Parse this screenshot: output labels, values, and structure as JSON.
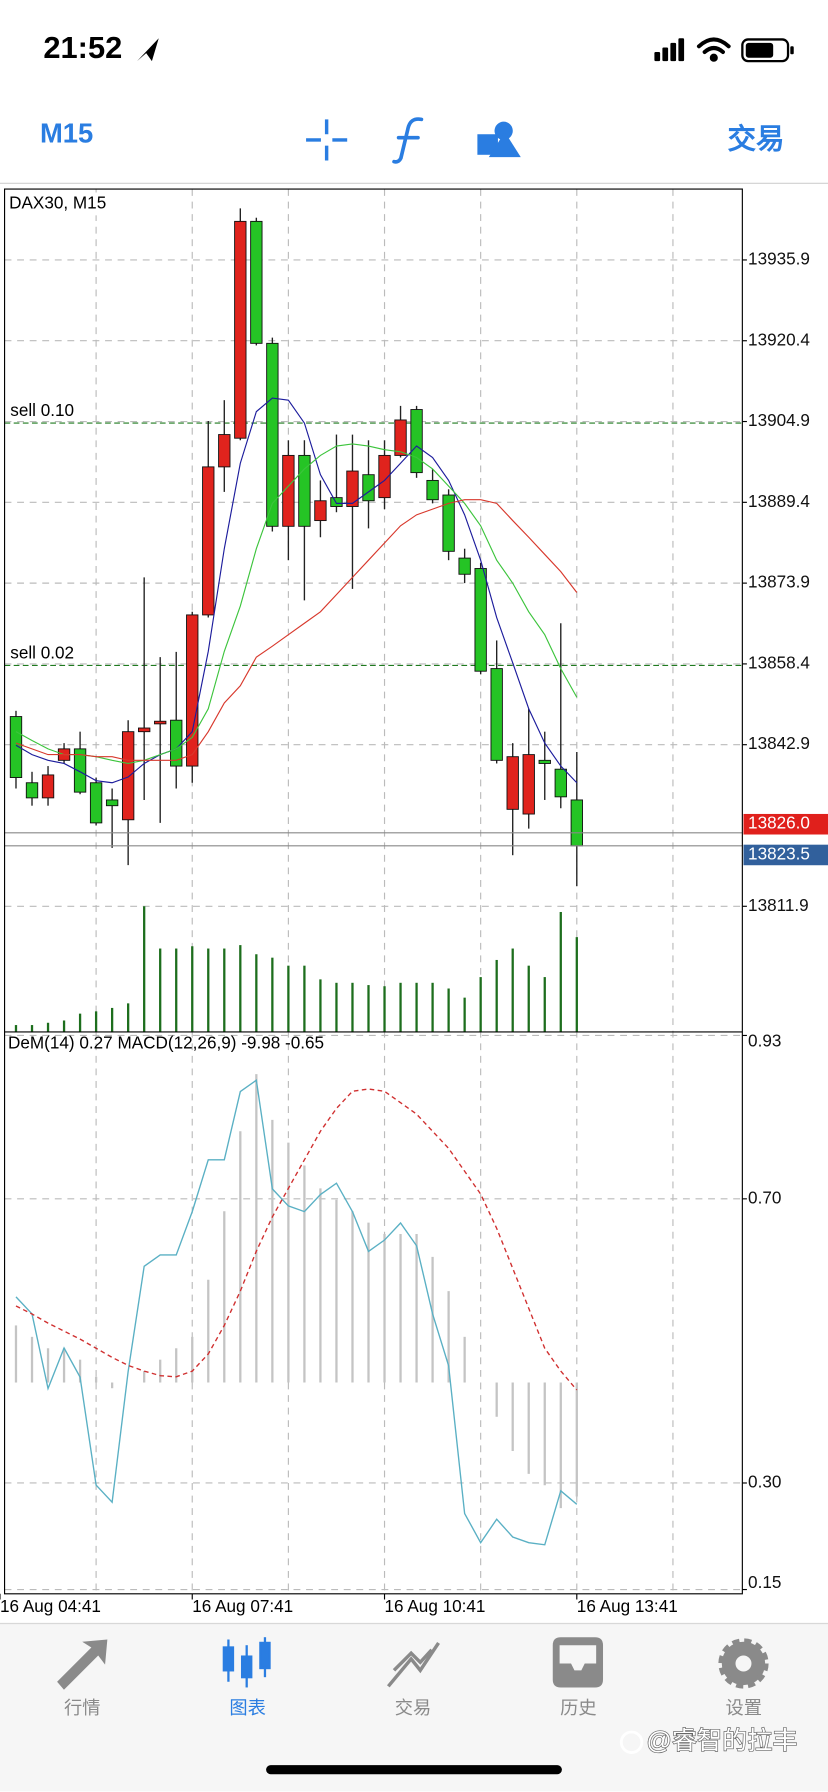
{
  "status_bar": {
    "time": "21:52"
  },
  "toolbar": {
    "timeframe": "M15",
    "trade": "交易"
  },
  "chart_data": {
    "type": "candlestick",
    "title": "DAX30, M15",
    "up_color": "#e0231d",
    "down_color": "#25c425",
    "grid": true,
    "ylim": [
      13787.8,
      13949.5
    ],
    "yticks": [
      13935.9,
      13920.4,
      13904.9,
      13889.4,
      13873.9,
      13858.4,
      13842.9,
      13811.9
    ],
    "open": [
      13848.3,
      13835.6,
      13832.7,
      13839.9,
      13842.1,
      13835.6,
      13832.3,
      13828.5,
      13845.4,
      13846.9,
      13847.6,
      13838.8,
      13867.8,
      13896.2,
      13901.7,
      13943.3,
      13919.9,
      13884.8,
      13898.4,
      13885.9,
      13890.3,
      13888.6,
      13894.7,
      13890.3,
      13898.4,
      13907.2,
      13893.6,
      13890.8,
      13878.7,
      13876.7,
      13857.5,
      13830.5,
      13829.6,
      13839.9,
      13838.2,
      13832.3
    ],
    "high": [
      13849.4,
      13837.7,
      13838.8,
      13843.2,
      13845.4,
      13836.6,
      13834.5,
      13847.6,
      13875.0,
      13859.7,
      13860.7,
      13868.4,
      13905.0,
      13909.0,
      13945.8,
      13944.0,
      13921.0,
      13901.3,
      13901.3,
      13893.6,
      13902.4,
      13902.4,
      13901.3,
      13901.3,
      13907.9,
      13907.9,
      13895.8,
      13891.9,
      13880.5,
      13877.8,
      13862.9,
      13843.2,
      13849.8,
      13845.4,
      13866.2,
      13841.5
    ],
    "low": [
      13834.5,
      13831.2,
      13831.2,
      13839.3,
      13833.4,
      13827.4,
      13823.1,
      13819.8,
      13832.3,
      13827.9,
      13834.5,
      13835.6,
      13867.3,
      13891.4,
      13901.3,
      13919.5,
      13883.8,
      13878.3,
      13870.6,
      13882.7,
      13887.5,
      13872.8,
      13884.4,
      13888.1,
      13898.0,
      13894.1,
      13889.2,
      13878.3,
      13873.9,
      13856.4,
      13839.3,
      13821.7,
      13826.8,
      13832.3,
      13830.7,
      13815.8
    ],
    "close": [
      13836.6,
      13832.7,
      13837.1,
      13842.1,
      13833.8,
      13827.9,
      13831.2,
      13845.4,
      13846.1,
      13847.4,
      13838.8,
      13867.8,
      13896.2,
      13902.4,
      13943.3,
      13919.9,
      13884.8,
      13898.4,
      13884.8,
      13889.7,
      13888.6,
      13895.4,
      13889.7,
      13898.4,
      13905.2,
      13895.1,
      13889.9,
      13880.0,
      13875.6,
      13857.0,
      13839.9,
      13840.6,
      13841.0,
      13839.3,
      13832.9,
      13823.5
    ],
    "ma_series": [
      {
        "color": "#1c1c9c",
        "values": [
          13842.8,
          13841.0,
          13839.9,
          13839.3,
          13837.7,
          13836.0,
          13835.6,
          13836.7,
          13839.3,
          13841.0,
          13842.1,
          13845.4,
          13860.8,
          13880.5,
          13896.9,
          13906.8,
          13909.4,
          13909.0,
          13904.6,
          13894.7,
          13889.2,
          13889.2,
          13891.4,
          13893.6,
          13896.9,
          13900.2,
          13898.0,
          13893.6,
          13887.0,
          13878.3,
          13867.3,
          13858.6,
          13849.8,
          13843.2,
          13838.8,
          13835.6
        ]
      },
      {
        "color": "#3cc43c",
        "values": [
          13845.4,
          13843.7,
          13842.1,
          13841.0,
          13841.0,
          13840.6,
          13839.9,
          13839.3,
          13839.9,
          13841.0,
          13842.1,
          13844.3,
          13849.8,
          13860.8,
          13869.5,
          13880.5,
          13889.2,
          13892.5,
          13895.8,
          13898.4,
          13900.2,
          13900.6,
          13900.2,
          13899.5,
          13899.1,
          13898.0,
          13895.8,
          13892.5,
          13889.2,
          13884.9,
          13878.3,
          13873.9,
          13868.4,
          13864.0,
          13857.5,
          13852.0
        ]
      },
      {
        "color": "#d8382c",
        "values": [
          13843.2,
          13842.1,
          13841.0,
          13841.0,
          13841.0,
          13840.6,
          13840.6,
          13839.9,
          13839.9,
          13839.9,
          13839.9,
          13841.0,
          13845.4,
          13850.9,
          13854.2,
          13859.7,
          13861.8,
          13864.0,
          13866.2,
          13868.4,
          13871.7,
          13875.0,
          13878.3,
          13881.6,
          13884.9,
          13887.0,
          13888.1,
          13889.2,
          13889.9,
          13889.9,
          13889.2,
          13885.9,
          13882.7,
          13879.4,
          13876.1,
          13872.1
        ]
      }
    ],
    "volume": {
      "color": "#1d6e1d",
      "values": [
        6,
        6,
        8,
        10,
        16,
        18,
        21,
        25,
        110,
        73,
        73,
        75,
        73,
        73,
        76,
        68,
        65,
        58,
        58,
        46,
        43,
        43,
        41,
        40,
        43,
        43,
        43,
        38,
        30,
        48,
        63,
        73,
        58,
        48,
        105,
        83
      ]
    },
    "orders": [
      {
        "label": "sell 0.10",
        "price": 13904.6,
        "color": "#1f7a1f"
      },
      {
        "label": "sell 0.02",
        "price": 13858.1,
        "color": "#1f7a1f"
      }
    ],
    "ask": {
      "value": 13826.0,
      "label": "13826.0",
      "color": "#e0201c"
    },
    "bid": {
      "value": 13823.5,
      "label": "13823.5",
      "color": "#31609c"
    },
    "x_labels": [
      "16 Aug 04:41",
      "16 Aug 07:41",
      "16 Aug 10:41",
      "16 Aug 13:41"
    ],
    "indicator": {
      "ylim": [
        0.144,
        0.935
      ],
      "yticks": [
        0.93,
        {
          "value": 0.7,
          "label": "0.70"
        },
        {
          "value": 0.3,
          "label": "0.30"
        },
        0.15
      ],
      "dem": {
        "name": "DeM(14)",
        "color": "#5ab0c4",
        "values": [
          0.562,
          0.538,
          0.433,
          0.49,
          0.449,
          0.297,
          0.273,
          0.457,
          0.605,
          0.621,
          0.621,
          0.682,
          0.755,
          0.755,
          0.851,
          0.867,
          0.714,
          0.69,
          0.682,
          0.706,
          0.722,
          0.682,
          0.626,
          0.642,
          0.666,
          0.634,
          0.538,
          0.465,
          0.257,
          0.216,
          0.249,
          0.224,
          0.216,
          0.213,
          0.289,
          0.27
        ]
      },
      "macd": {
        "name": "MACD(12,26,9)",
        "color": "#c4c4c4",
        "ylim": [
          -18.5,
          30.7
        ],
        "values": [
          5,
          4,
          3,
          3,
          2,
          0.5,
          -0.5,
          0,
          1,
          2,
          3,
          4,
          9,
          15,
          22,
          27,
          23,
          21,
          19,
          17,
          16,
          15,
          14,
          13,
          13,
          13,
          11,
          8,
          4,
          0,
          -3,
          -6,
          -8,
          -9,
          -11,
          -9.98
        ]
      },
      "signal": {
        "color": "#d03030",
        "values": [
          6.7,
          6.0,
          5.2,
          4.5,
          3.8,
          3.0,
          2.2,
          1.5,
          1.0,
          0.6,
          0.5,
          1.0,
          2.5,
          5.0,
          8.0,
          11.5,
          14.5,
          17.0,
          19.5,
          22.0,
          24.0,
          25.5,
          25.7,
          25.5,
          24.5,
          23.5,
          22.0,
          20.5,
          18.5,
          16.5,
          13.5,
          10.0,
          6.5,
          3.0,
          1.0,
          -0.65
        ]
      }
    }
  },
  "tab_bar": {
    "items": [
      "行情",
      "图表",
      "交易",
      "历史",
      "设置"
    ],
    "active": 1
  },
  "watermark": "@睿智的拉丰"
}
